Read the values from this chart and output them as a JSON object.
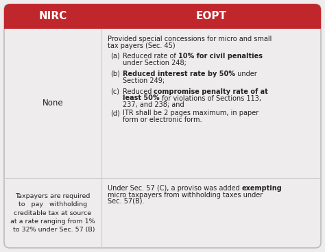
{
  "header_bg": "#c0272d",
  "header_text_color": "#ffffff",
  "body_bg": "#eeecec",
  "body_text_color": "#222222",
  "divider_color": "#cccccc",
  "header_nirc": "NIRC",
  "header_eopt": "EOPT",
  "row1_nirc": "None",
  "row2_nirc_lines": [
    "Taxpayers are required",
    "to   pay   withholding",
    "creditable tax at source",
    "at a rate ranging from 1%",
    " to 32% under Sec. 57 (B)"
  ],
  "fig_width": 4.74,
  "fig_height": 3.68,
  "dpi": 100
}
